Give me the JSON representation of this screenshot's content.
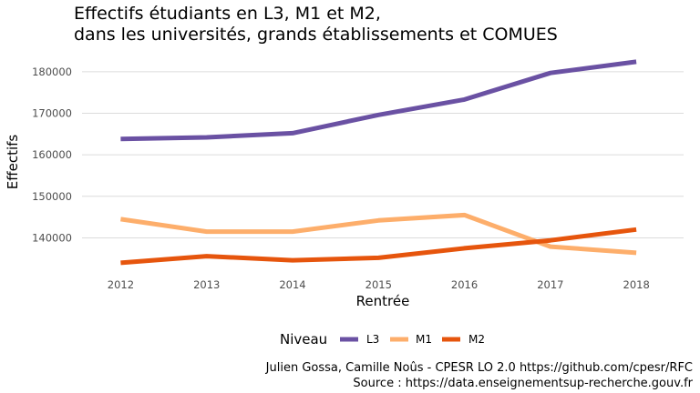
{
  "chart_data": {
    "type": "line",
    "title": "Effectifs étudiants en L3, M1 et M2,",
    "subtitle": "dans les universités, grands établissements et COMUES",
    "xlabel": "Rentrée",
    "ylabel": "Effectifs",
    "x": [
      2012,
      2013,
      2014,
      2015,
      2016,
      2017,
      2018
    ],
    "x_tick_labels": [
      "2012",
      "2013",
      "2014",
      "2015",
      "2016",
      "2017",
      "2018"
    ],
    "y_ticks": [
      140000,
      150000,
      160000,
      170000,
      180000
    ],
    "y_tick_labels": [
      "140000",
      "150000",
      "160000",
      "170000",
      "180000"
    ],
    "ylim": [
      132000,
      185000
    ],
    "xlim": [
      2011.55,
      2018.55
    ],
    "grid": "horizontal",
    "legend_position": "bottom",
    "legend_title": "Niveau",
    "series": [
      {
        "name": "L3",
        "color": "#6a51a3",
        "values": [
          163800,
          164200,
          165200,
          169600,
          173300,
          179700,
          182400
        ]
      },
      {
        "name": "M1",
        "color": "#fdae6b",
        "values": [
          144500,
          141500,
          141500,
          144200,
          145500,
          137900,
          136400
        ]
      },
      {
        "name": "M2",
        "color": "#e6550d",
        "values": [
          134000,
          135600,
          134600,
          135200,
          137500,
          139400,
          142000
        ]
      }
    ],
    "caption": [
      "Julien Gossa, Camille Noûs - CPESR LO 2.0 https://github.com/cpesr/RFC",
      "Source : https://data.enseignementsup-recherche.gouv.fr"
    ]
  }
}
